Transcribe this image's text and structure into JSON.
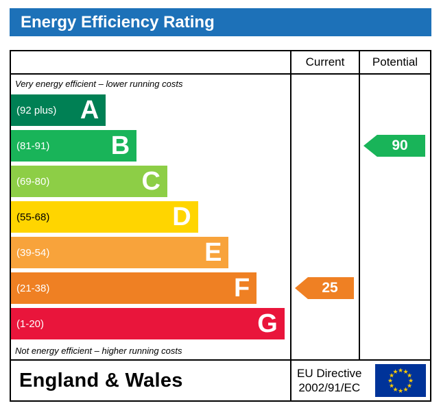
{
  "title": "Energy Efficiency Rating",
  "title_bar_color": "#1d71b8",
  "header": {
    "current_label": "Current",
    "potential_label": "Potential"
  },
  "captions": {
    "top": "Very energy efficient – lower running costs",
    "bottom": "Not energy efficient – higher running costs"
  },
  "bands": [
    {
      "letter": "A",
      "range": "(92 plus)",
      "color": "#008054",
      "width_pct": 34,
      "range_text_color": "#ffffff"
    },
    {
      "letter": "B",
      "range": "(81-91)",
      "color": "#19b459",
      "width_pct": 45,
      "range_text_color": "#ffffff"
    },
    {
      "letter": "C",
      "range": "(69-80)",
      "color": "#8dce46",
      "width_pct": 56,
      "range_text_color": "#ffffff"
    },
    {
      "letter": "D",
      "range": "(55-68)",
      "color": "#ffd500",
      "width_pct": 67,
      "range_text_color": "#000000"
    },
    {
      "letter": "E",
      "range": "(39-54)",
      "color": "#f8a33b",
      "width_pct": 78,
      "range_text_color": "#ffffff"
    },
    {
      "letter": "F",
      "range": "(21-38)",
      "color": "#ef8023",
      "width_pct": 88,
      "range_text_color": "#ffffff"
    },
    {
      "letter": "G",
      "range": "(1-20)",
      "color": "#e9153b",
      "width_pct": 98,
      "range_text_color": "#ffffff"
    }
  ],
  "ratings": {
    "current": {
      "value": "25",
      "band": "F",
      "arrow_color": "#ef8023"
    },
    "potential": {
      "value": "90",
      "band": "B",
      "arrow_color": "#19b459"
    }
  },
  "footer": {
    "region": "England & Wales",
    "directive_line1": "EU Directive",
    "directive_line2": "2002/91/EC",
    "eu_flag_colors": {
      "background": "#003399",
      "stars": "#ffcc00"
    }
  },
  "chart_data": {
    "type": "bar",
    "title": "Energy Efficiency Rating",
    "categories": [
      "A",
      "B",
      "C",
      "D",
      "E",
      "F",
      "G"
    ],
    "band_ranges": [
      "92 plus",
      "81-91",
      "69-80",
      "55-68",
      "39-54",
      "21-38",
      "1-20"
    ],
    "band_colors": [
      "#008054",
      "#19b459",
      "#8dce46",
      "#ffd500",
      "#f8a33b",
      "#ef8023",
      "#e9153b"
    ],
    "bar_lengths_pct": [
      34,
      45,
      56,
      67,
      78,
      88,
      98
    ],
    "series": [
      {
        "name": "Current",
        "value": 25,
        "band": "F"
      },
      {
        "name": "Potential",
        "value": 90,
        "band": "B"
      }
    ],
    "value_range": [
      1,
      100
    ],
    "xlabel": "",
    "ylabel": "",
    "annotations": [
      "Very energy efficient – lower running costs",
      "Not energy efficient – higher running costs",
      "England & Wales",
      "EU Directive 2002/91/EC"
    ],
    "legend_position": "none",
    "grid": false
  }
}
